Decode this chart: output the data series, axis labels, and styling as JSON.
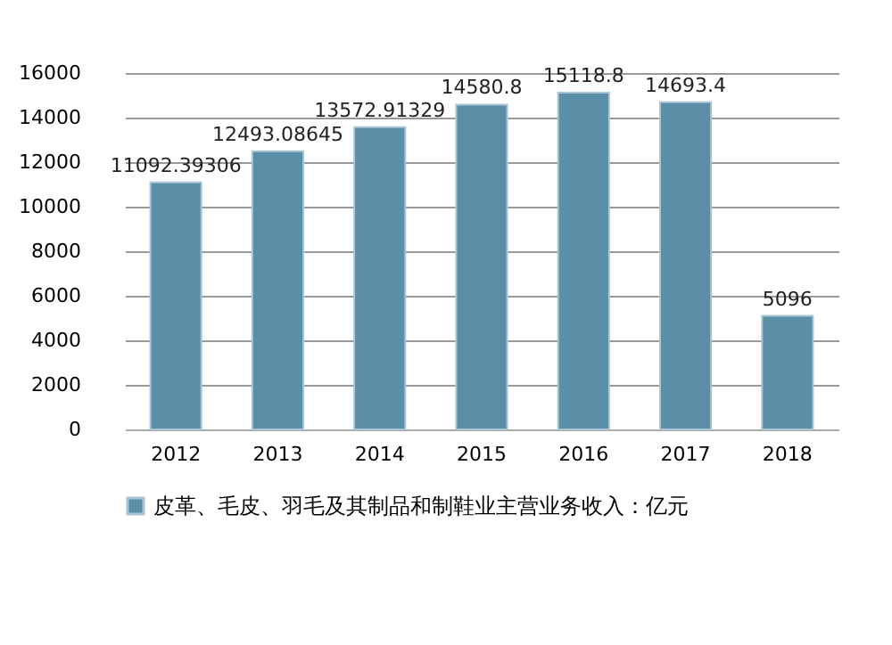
{
  "chart_data": {
    "type": "bar",
    "categories": [
      "2012",
      "2013",
      "2014",
      "2015",
      "2016",
      "2017",
      "2018"
    ],
    "series": [
      {
        "name": "皮革、毛皮、羽毛及其制品和制鞋业主营业务收入：亿元",
        "color": "#5b8fa8",
        "values": [
          11092.39306,
          12493.08645,
          13572.91329,
          14580.8,
          15118.8,
          14693.4,
          5096
        ]
      }
    ],
    "ylim": [
      0,
      16000
    ],
    "yticks": [
      0,
      2000,
      4000,
      6000,
      8000,
      10000,
      12000,
      14000,
      16000
    ],
    "grid": "y",
    "data_labels": true,
    "legend": "bottom"
  }
}
